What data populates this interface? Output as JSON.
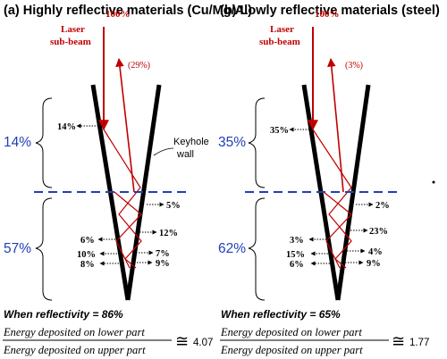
{
  "panels": [
    {
      "title": "(a) Highly reflective materials (Cu/Mg/Al)",
      "incident": "100%",
      "beam_label": [
        "Laser",
        "sub-beam"
      ],
      "reflected_out": "(29%)",
      "upper_share": "14%",
      "lower_share": "57%",
      "upper_labels": [
        "14%"
      ],
      "lower_right_labels": [
        "5%",
        "12%",
        "7%",
        "9%"
      ],
      "lower_left_labels": [
        "6%",
        "10%",
        "8%"
      ],
      "wall_label": [
        "Keyhole",
        "wall"
      ],
      "reflectivity_text": "When reflectivity = 86%",
      "ratio_numerator": "Energy deposited on lower part",
      "ratio_denominator": "Energy deposited on upper part",
      "ratio_symbol": "≅",
      "ratio_value": "4.07"
    },
    {
      "title": "(b) Lowly reflective materials (steel)",
      "incident": "100%",
      "beam_label": [
        "Laser",
        "sub-beam"
      ],
      "reflected_out": "(3%)",
      "upper_share": "35%",
      "lower_share": "62%",
      "upper_labels": [
        "35%"
      ],
      "lower_right_labels": [
        "2%",
        "23%",
        "4%",
        "9%"
      ],
      "lower_left_labels": [
        "3%",
        "15%",
        "6%"
      ],
      "wall_label": [],
      "reflectivity_text": "When reflectivity = 65%",
      "ratio_numerator": "Energy deposited on lower part",
      "ratio_denominator": "Energy deposited on upper part",
      "ratio_symbol": "≅",
      "ratio_value": "1.77"
    }
  ],
  "colors": {
    "beam": "#c00000",
    "wall": "#000000",
    "divider": "#1f3fb8",
    "share_text": "#1f3fb8"
  }
}
